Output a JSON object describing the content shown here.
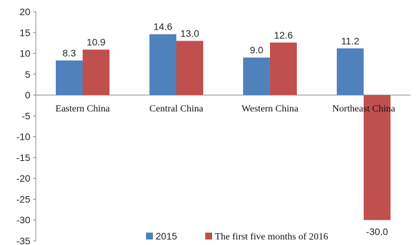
{
  "chart_data": {
    "type": "bar",
    "title": "",
    "xlabel": "",
    "ylabel": "",
    "categories": [
      "Eastern China",
      "Central China",
      "Western China",
      "Northeast China"
    ],
    "series": [
      {
        "name": "2015",
        "values": [
          8.3,
          14.6,
          9.0,
          11.2
        ],
        "labels": [
          "8.3",
          "14.6",
          "9.0",
          "11.2"
        ],
        "color": "#4f81bd"
      },
      {
        "name": "The first five months of 2016",
        "values": [
          10.9,
          13.0,
          12.6,
          -30.0
        ],
        "labels": [
          "10.9",
          "13.0",
          "12.6",
          "-30.0"
        ],
        "color": "#c0504d"
      }
    ],
    "ylim": [
      -35,
      20
    ],
    "yticks": [
      20,
      15,
      10,
      5,
      0,
      -5,
      -10,
      -15,
      -20,
      -25,
      -30,
      -35
    ],
    "grid": false,
    "legend": "bottom"
  }
}
